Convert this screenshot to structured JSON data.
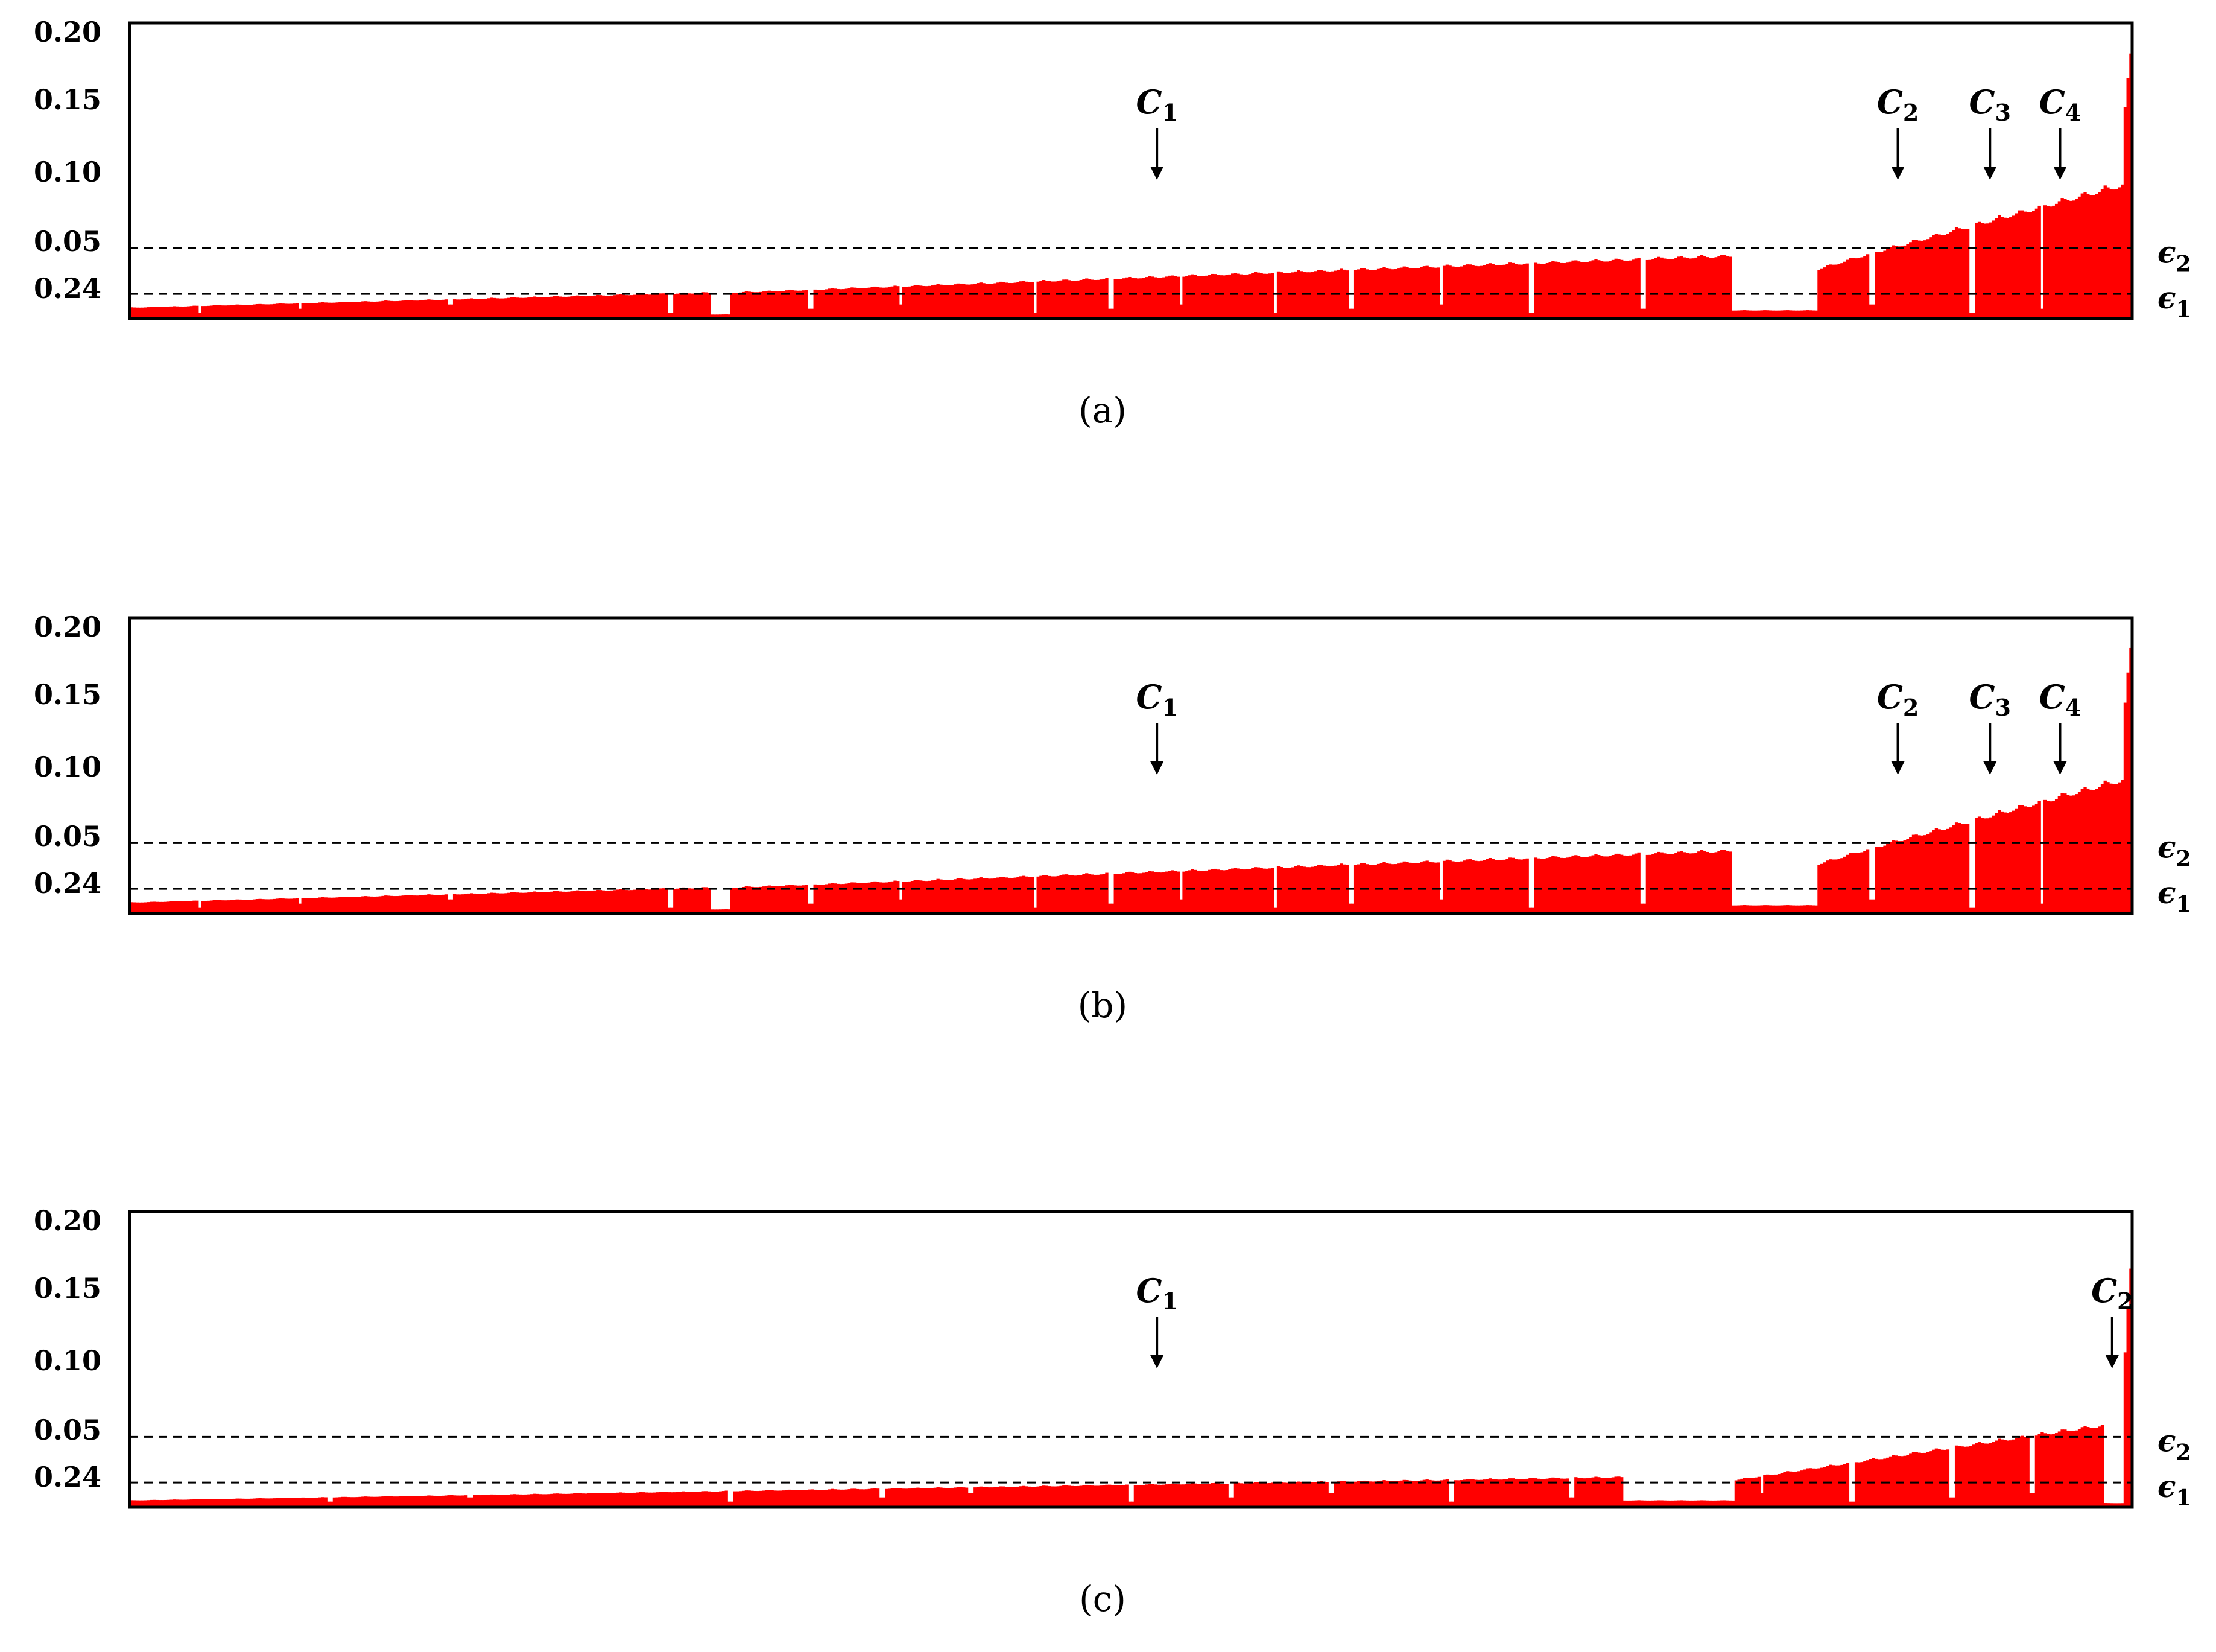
{
  "colors": {
    "bars": "#ff0000",
    "axes": "#000000",
    "background": "#ffffff"
  },
  "chart_data": [
    {
      "type": "bar",
      "caption": "(a)",
      "ytick_labels": [
        "0.20",
        "0.15",
        "0.10",
        "0.05",
        "0.24"
      ],
      "thresholds": [
        {
          "label": "ϵ",
          "subscript": "2",
          "value": 0.05
        },
        {
          "label": "ϵ",
          "subscript": "1",
          "value": 0.0175
        }
      ],
      "clusters": [
        {
          "label": "C",
          "subscript": "1",
          "position": 0.513
        },
        {
          "label": "C",
          "subscript": "2",
          "position": 0.883
        },
        {
          "label": "C",
          "subscript": "3",
          "position": 0.929
        },
        {
          "label": "C",
          "subscript": "4",
          "position": 0.964
        }
      ],
      "segments": [
        {
          "start": 0.0,
          "end": 0.29,
          "from": 0.008,
          "to": 0.019
        },
        {
          "start": 0.29,
          "end": 0.3,
          "from": 0.003,
          "to": 0.003
        },
        {
          "start": 0.3,
          "end": 0.8,
          "from": 0.019,
          "to": 0.046
        },
        {
          "start": 0.8,
          "end": 0.843,
          "from": 0.006,
          "to": 0.006
        },
        {
          "start": 0.843,
          "end": 0.87,
          "from": 0.036,
          "to": 0.048
        },
        {
          "start": 0.87,
          "end": 0.995,
          "from": 0.048,
          "to": 0.098
        },
        {
          "start": 0.995,
          "end": 1.0,
          "from": 0.13,
          "to": 0.205
        }
      ],
      "dips": [
        0.035,
        0.085,
        0.16,
        0.27,
        0.34,
        0.385,
        0.452,
        0.49,
        0.525,
        0.572,
        0.61,
        0.655,
        0.7,
        0.756,
        0.87,
        0.92,
        0.955
      ]
    },
    {
      "type": "bar",
      "caption": "(b)",
      "ytick_labels": [
        "0.20",
        "0.15",
        "0.10",
        "0.05",
        "0.24"
      ],
      "thresholds": [
        {
          "label": "ϵ",
          "subscript": "2",
          "value": 0.05
        },
        {
          "label": "ϵ",
          "subscript": "1",
          "value": 0.0175
        }
      ],
      "clusters": [
        {
          "label": "C",
          "subscript": "1",
          "position": 0.513
        },
        {
          "label": "C",
          "subscript": "2",
          "position": 0.883
        },
        {
          "label": "C",
          "subscript": "3",
          "position": 0.929
        },
        {
          "label": "C",
          "subscript": "4",
          "position": 0.964
        }
      ],
      "segments": [
        {
          "start": 0.0,
          "end": 0.29,
          "from": 0.008,
          "to": 0.019
        },
        {
          "start": 0.29,
          "end": 0.3,
          "from": 0.003,
          "to": 0.003
        },
        {
          "start": 0.3,
          "end": 0.8,
          "from": 0.019,
          "to": 0.046
        },
        {
          "start": 0.8,
          "end": 0.843,
          "from": 0.006,
          "to": 0.006
        },
        {
          "start": 0.843,
          "end": 0.87,
          "from": 0.036,
          "to": 0.048
        },
        {
          "start": 0.87,
          "end": 0.995,
          "from": 0.048,
          "to": 0.098
        },
        {
          "start": 0.995,
          "end": 1.0,
          "from": 0.13,
          "to": 0.205
        }
      ],
      "dips": [
        0.035,
        0.085,
        0.16,
        0.27,
        0.34,
        0.385,
        0.452,
        0.49,
        0.525,
        0.572,
        0.61,
        0.655,
        0.7,
        0.756,
        0.87,
        0.92,
        0.955
      ]
    },
    {
      "type": "bar",
      "caption": "(c)",
      "ytick_labels": [
        "0.20",
        "0.15",
        "0.10",
        "0.05",
        "0.24"
      ],
      "thresholds": [
        {
          "label": "ϵ",
          "subscript": "2",
          "value": 0.05
        },
        {
          "label": "ϵ",
          "subscript": "1",
          "value": 0.0175
        }
      ],
      "clusters": [
        {
          "label": "C",
          "subscript": "1",
          "position": 0.513
        },
        {
          "label": "C",
          "subscript": "2",
          "position": 0.99
        }
      ],
      "segments": [
        {
          "start": 0.0,
          "end": 0.745,
          "from": 0.005,
          "to": 0.022
        },
        {
          "start": 0.745,
          "end": 0.802,
          "from": 0.005,
          "to": 0.005
        },
        {
          "start": 0.802,
          "end": 0.985,
          "from": 0.02,
          "to": 0.06
        },
        {
          "start": 0.985,
          "end": 0.995,
          "from": 0.003,
          "to": 0.003
        },
        {
          "start": 0.995,
          "end": 1.0,
          "from": 0.08,
          "to": 0.19
        }
      ],
      "dips": [
        0.1,
        0.17,
        0.23,
        0.3,
        0.376,
        0.42,
        0.5,
        0.55,
        0.6,
        0.66,
        0.72,
        0.815,
        0.86,
        0.91,
        0.95
      ]
    }
  ]
}
